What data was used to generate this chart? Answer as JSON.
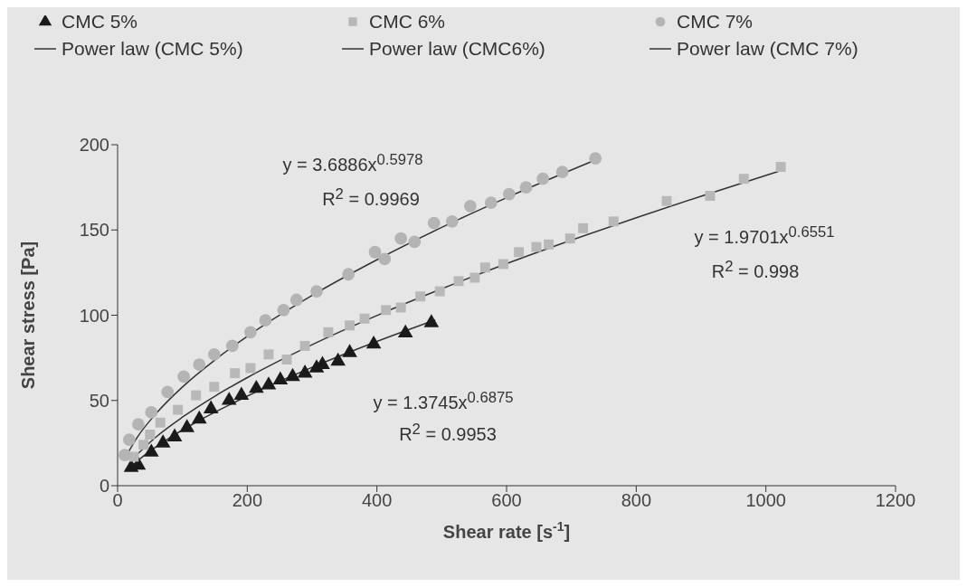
{
  "chart_data": {
    "type": "scatter",
    "xlabel": "Shear rate [s$^{-1}$]",
    "ylabel": "Shear stress [Pa]",
    "xlim": [
      0,
      1200
    ],
    "xticks": [
      0,
      200,
      400,
      600,
      800,
      1000,
      1200
    ],
    "ylim": [
      0,
      200
    ],
    "yticks": [
      0,
      50,
      100,
      150,
      200
    ],
    "grid": false,
    "legend": "top",
    "series": [
      {
        "name": "CMC 5%",
        "marker": "triangle",
        "color": "#1a1a1a",
        "x": [
          21,
          32,
          52,
          70,
          88,
          107,
          126,
          144,
          172,
          191,
          214,
          233,
          251,
          270,
          289,
          307,
          316,
          340,
          358,
          395,
          444,
          484
        ],
        "values": [
          10.6,
          12,
          19.6,
          25,
          28.6,
          34,
          39,
          45,
          50,
          53,
          57,
          59,
          62,
          64,
          66,
          69,
          71,
          73,
          78,
          83,
          89.5,
          95.5
        ]
      },
      {
        "name": "CMC 6%",
        "marker": "square",
        "color": "#b8b8b8",
        "x": [
          25,
          40,
          50,
          66,
          93,
          121,
          149,
          181,
          205,
          233,
          261,
          289,
          325,
          358,
          381,
          414,
          437,
          467,
          497,
          526,
          551,
          567,
          595,
          619,
          646,
          665,
          698,
          718,
          765,
          847,
          914,
          966,
          1023
        ],
        "values": [
          17,
          24,
          30,
          37,
          44.5,
          53,
          58,
          66,
          69,
          77,
          74,
          82,
          90,
          94,
          98,
          103,
          104.5,
          111,
          114,
          120,
          122,
          128,
          130,
          137,
          140,
          141.5,
          145,
          151,
          155,
          167,
          170,
          180,
          187
        ]
      },
      {
        "name": "CMC 7%",
        "marker": "circle",
        "color": "#b4b4b4",
        "x": [
          11,
          18,
          32,
          52,
          77,
          102,
          126,
          149,
          177,
          205,
          228,
          256,
          276,
          307,
          356,
          397,
          412,
          437,
          458,
          488,
          516,
          544,
          576,
          604,
          630,
          656,
          686,
          737
        ],
        "values": [
          18,
          27,
          36,
          43,
          55,
          64,
          71,
          77,
          82,
          90,
          97,
          103,
          109,
          114,
          124,
          137,
          133,
          145,
          143,
          154,
          155,
          164,
          166,
          171,
          175,
          180,
          184,
          192
        ]
      },
      {
        "name": "Power law (CMC 5%)",
        "type": "line",
        "marker": "none",
        "color": "#333333",
        "x": [
          20,
          40,
          80,
          120,
          160,
          200,
          300,
          400,
          490
        ],
        "values": [
          10.8,
          17.4,
          28,
          37,
          45,
          52.5,
          69.4,
          84.6,
          97.2
        ]
      },
      {
        "name": "Power law (CMC6%)",
        "type": "line",
        "marker": "none",
        "color": "#333333",
        "x": [
          30,
          60,
          100,
          150,
          200,
          300,
          400,
          500,
          600,
          700,
          800,
          900,
          1020
        ],
        "values": [
          18.3,
          28.8,
          40.2,
          52.5,
          63.4,
          82.7,
          99.8,
          115.5,
          130.2,
          144,
          157.2,
          169.8,
          184.4
        ]
      },
      {
        "name": "Power law (CMC 7%)",
        "type": "line",
        "marker": "none",
        "color": "#333333",
        "x": [
          15,
          30,
          60,
          100,
          150,
          200,
          300,
          400,
          500,
          600,
          740
        ],
        "values": [
          18.6,
          28.2,
          42.6,
          57.9,
          73.7,
          87.6,
          111.6,
          132.5,
          151.5,
          168.9,
          191.5
        ]
      }
    ],
    "annotations": [
      "y = 3.6886x$^{0.5978}$",
      "R$^{2}$ = 0.9969",
      "y = 1.9701x$^{0.6551}$",
      "R$^{2}$ = 0.998",
      "y = 1.3745x$^{0.6875}$",
      "R$^{2}$ = 0.9953"
    ]
  }
}
